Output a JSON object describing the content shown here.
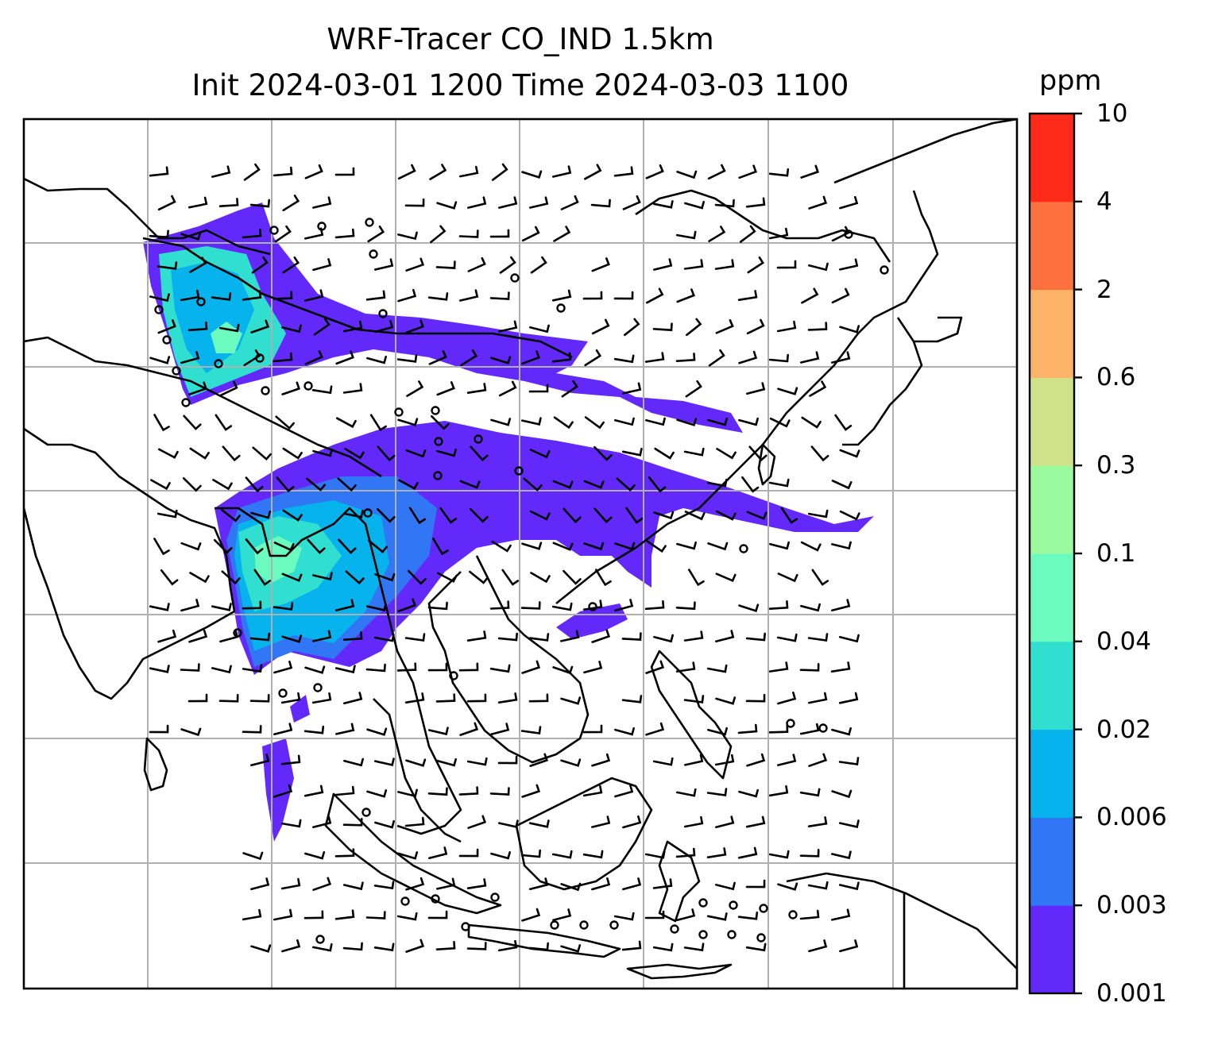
{
  "title": {
    "line1": "WRF-Tracer CO_IND 1.5km",
    "line2": "Init 2024-03-01 1200 Time 2024-03-03 1100"
  },
  "colorbar": {
    "unit": "ppm",
    "levels": [
      "0.001",
      "0.003",
      "0.006",
      "0.02",
      "0.04",
      "0.1",
      "0.3",
      "0.6",
      "2",
      "4",
      "10"
    ],
    "colors": [
      "#6329fb",
      "#3176f4",
      "#06b3ec",
      "#31dfd1",
      "#6bfbbf",
      "#9cfa9e",
      "#cfe289",
      "#fdb468",
      "#fe7040",
      "#fe2b1a"
    ]
  },
  "map": {
    "region": "South and Southeast Asia",
    "field": "CO_IND tracer concentration",
    "overlay": "wind barbs",
    "gridlines": true
  }
}
